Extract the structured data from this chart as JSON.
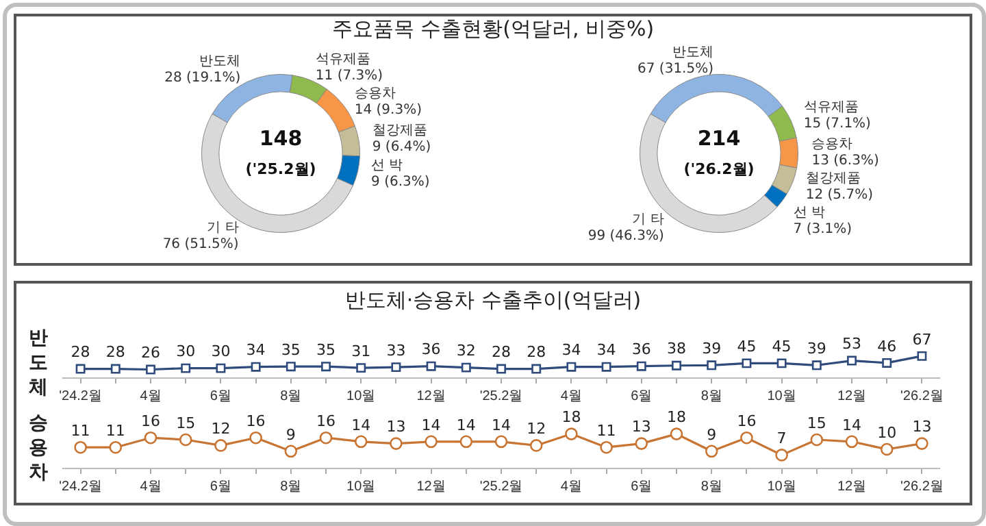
{
  "chart_data": [
    {
      "type": "donut",
      "title": "주요품목 수출현황(억달러, 비중%)",
      "categories": [
        "반도체",
        "석유제품",
        "승용차",
        "철강제품",
        "선 박",
        "기 타"
      ],
      "values": [
        28,
        11,
        14,
        9,
        9,
        76
      ],
      "colors": [
        "#8db4e2",
        "#8fba4e",
        "#f79646",
        "#c4bd97",
        "#0070c0",
        "#d9d9d9"
      ],
      "value_labels": [
        "28 (19.1%)",
        "11 (7.3%)",
        "14 (9.3%)",
        "9 (6.4%)",
        "9 (6.3%)",
        "76 (51.5%)"
      ],
      "annotations": [
        "148",
        "('25.2월)"
      ],
      "legend": false
    },
    {
      "type": "donut",
      "categories": [
        "반도체",
        "석유제품",
        "승용차",
        "철강제품",
        "선 박",
        "기 타"
      ],
      "values": [
        67,
        15,
        13,
        12,
        7,
        99
      ],
      "colors": [
        "#8db4e2",
        "#8fba4e",
        "#f79646",
        "#c4bd97",
        "#0070c0",
        "#d9d9d9"
      ],
      "value_labels": [
        "67 (31.5%)",
        "15 (7.1%)",
        "13 (6.3%)",
        "12 (5.7%)",
        "7 (3.1%)",
        "99 (46.3%)"
      ],
      "annotations": [
        "214",
        "('26.2월)"
      ],
      "legend": false
    },
    {
      "type": "line",
      "title": "반도체·승용차 수출추이(억달러)",
      "ylabel": "반도체",
      "categories": [
        "'24.2월",
        null,
        "4월",
        null,
        "6월",
        null,
        "8월",
        null,
        "10월",
        null,
        "12월",
        null,
        "'25.2월",
        null,
        "4월",
        null,
        "6월",
        null,
        "8월",
        null,
        "10월",
        null,
        "12월",
        null,
        "'26.2월"
      ],
      "series": [
        {
          "color": "#2f4b7c",
          "values": [
            28,
            28,
            26,
            30,
            30,
            34,
            35,
            35,
            31,
            33,
            36,
            32,
            28,
            28,
            34,
            34,
            36,
            38,
            39,
            45,
            45,
            39,
            53,
            46,
            67
          ]
        }
      ],
      "marker": "square",
      "data_labels": true,
      "tick_labels": "x",
      "legend": false
    },
    {
      "type": "line",
      "ylabel": "승용차",
      "categories": [
        "'24.2월",
        null,
        "4월",
        null,
        "6월",
        null,
        "8월",
        null,
        "10월",
        null,
        "12월",
        null,
        "'25.2월",
        null,
        "4월",
        null,
        "6월",
        null,
        "8월",
        null,
        "10월",
        null,
        "12월",
        null,
        "'26.2월"
      ],
      "series": [
        {
          "color": "#c87533",
          "values": [
            11,
            11,
            16,
            15,
            12,
            16,
            9,
            16,
            14,
            13,
            14,
            14,
            14,
            12,
            18,
            11,
            13,
            18,
            9,
            16,
            7,
            15,
            14,
            10,
            13
          ]
        }
      ],
      "marker": "circle",
      "data_labels": true,
      "tick_labels": "x",
      "legend": false
    }
  ]
}
